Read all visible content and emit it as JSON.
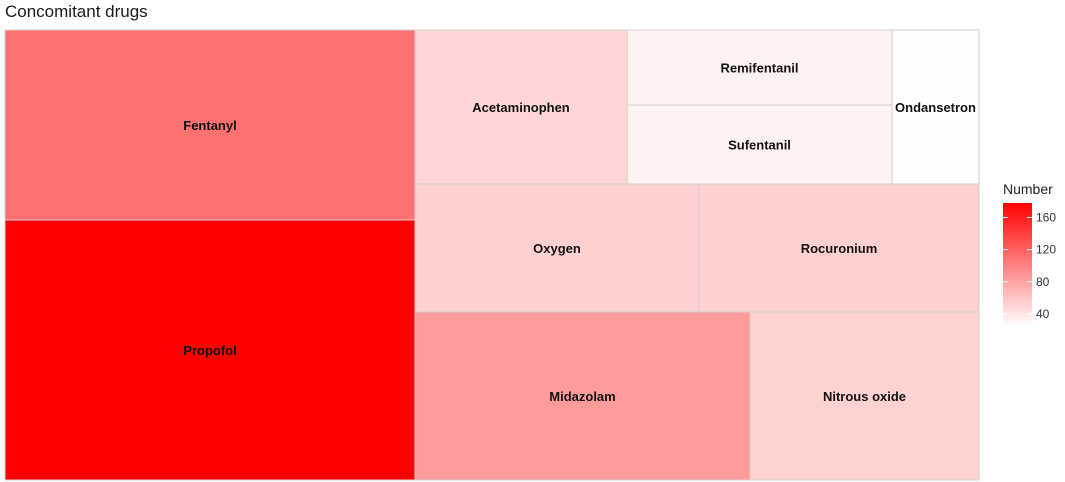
{
  "chart_data": {
    "type": "treemap",
    "title": "Concomitant drugs",
    "legend": {
      "title": "Number",
      "ticks": [
        40,
        80,
        120,
        160
      ],
      "range": [
        25,
        178
      ],
      "placement": "right"
    },
    "color_low": "#ffffff",
    "color_high": "#ff0000",
    "items": [
      {
        "name": "Propofol",
        "value": 178
      },
      {
        "name": "Fentanyl",
        "value": 110
      },
      {
        "name": "Midazolam",
        "value": 85
      },
      {
        "name": "Nitrous oxide",
        "value": 52
      },
      {
        "name": "Oxygen",
        "value": 53
      },
      {
        "name": "Rocuronium",
        "value": 53
      },
      {
        "name": "Acetaminophen",
        "value": 50
      },
      {
        "name": "Remifentanil",
        "value": 33
      },
      {
        "name": "Sufentanil",
        "value": 33
      },
      {
        "name": "Ondansetron",
        "value": 27
      }
    ]
  }
}
